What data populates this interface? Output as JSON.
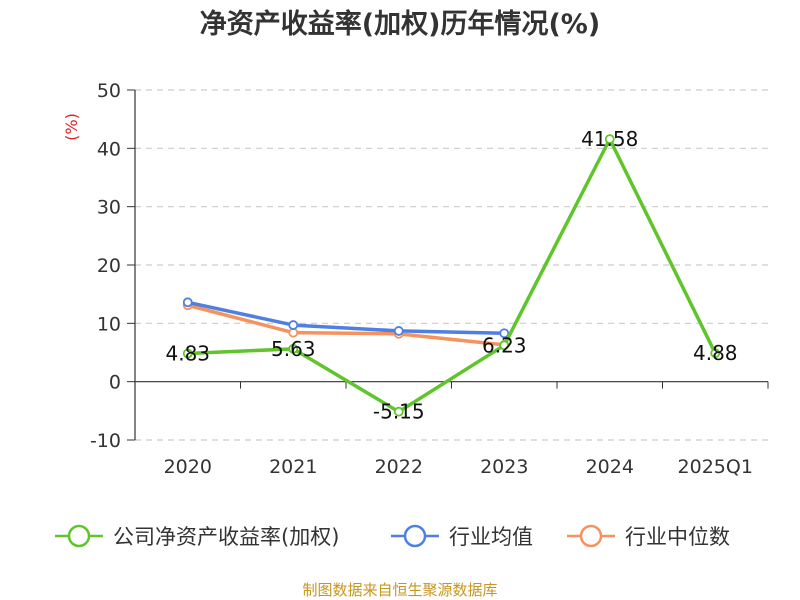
{
  "chart_data": {
    "type": "line",
    "title": "净资产收益率(加权)历年情况(%)",
    "ylabel": "(%)",
    "xlabel": "",
    "categories": [
      "2020",
      "2021",
      "2022",
      "2023",
      "2024",
      "2025Q1"
    ],
    "y_ticks": [
      "50",
      "40",
      "30",
      "20",
      "10",
      "0",
      "-10"
    ],
    "ylim": [
      -10,
      50
    ],
    "grid": true,
    "legend_position": "bottom",
    "series": [
      {
        "name": "公司净资产收益率(加权)",
        "color": "#5fc52b",
        "values": [
          4.83,
          5.63,
          -5.15,
          6.23,
          41.58,
          4.88
        ],
        "labels": [
          "4.83",
          "5.63",
          "-5.15",
          "6.23",
          "41.58",
          "4.88"
        ]
      },
      {
        "name": "行业均值",
        "color": "#4f7fe0",
        "values": [
          13.6,
          9.7,
          8.7,
          8.3,
          null,
          null
        ]
      },
      {
        "name": "行业中位数",
        "color": "#f5925e",
        "values": [
          13.1,
          8.4,
          8.2,
          6.3,
          null,
          null
        ]
      }
    ]
  },
  "footer": {
    "source": "制图数据来自恒生聚源数据库"
  }
}
